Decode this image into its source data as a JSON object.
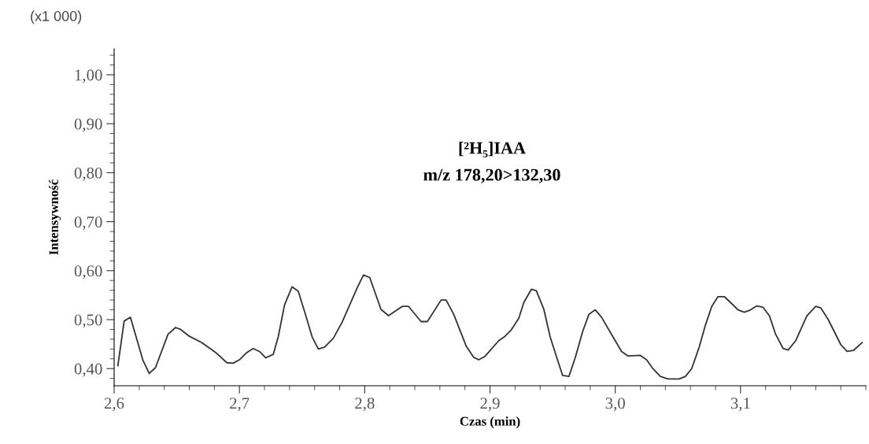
{
  "chart_data": {
    "type": "line",
    "xlabel": "Czas (min)",
    "ylabel": "Intensywność",
    "annotations": [
      "(x1 000)",
      "[²H₅]IAA",
      "m/z 178,20>132,30"
    ],
    "x": [
      2.603,
      2.608,
      2.613,
      2.623,
      2.628,
      2.633,
      2.643,
      2.649,
      2.653,
      2.66,
      2.67,
      2.681,
      2.69,
      2.695,
      2.7,
      2.706,
      2.711,
      2.716,
      2.721,
      2.727,
      2.731,
      2.736,
      2.742,
      2.747,
      2.753,
      2.758,
      2.763,
      2.768,
      2.775,
      2.782,
      2.787,
      2.794,
      2.799,
      2.804,
      2.813,
      2.819,
      2.83,
      2.835,
      2.845,
      2.85,
      2.861,
      2.865,
      2.871,
      2.881,
      2.887,
      2.891,
      2.896,
      2.907,
      2.912,
      2.917,
      2.923,
      2.927,
      2.933,
      2.937,
      2.943,
      2.948,
      2.954,
      2.958,
      2.963,
      2.968,
      2.974,
      2.979,
      2.984,
      2.989,
      2.997,
      3.005,
      3.01,
      3.02,
      3.025,
      3.03,
      3.036,
      3.042,
      3.051,
      3.056,
      3.061,
      3.067,
      3.072,
      3.077,
      3.082,
      3.087,
      3.092,
      3.098,
      3.103,
      3.108,
      3.113,
      3.118,
      3.123,
      3.128,
      3.134,
      3.138,
      3.144,
      3.153,
      3.16,
      3.164,
      3.17,
      3.18,
      3.185,
      3.19,
      3.197
    ],
    "series": [
      {
        "color": "#333333",
        "values": [
          0.406,
          0.497,
          0.505,
          0.417,
          0.39,
          0.402,
          0.47,
          0.484,
          0.48,
          0.466,
          0.453,
          0.433,
          0.412,
          0.411,
          0.418,
          0.433,
          0.441,
          0.435,
          0.422,
          0.429,
          0.465,
          0.53,
          0.567,
          0.558,
          0.508,
          0.465,
          0.44,
          0.444,
          0.462,
          0.495,
          0.524,
          0.565,
          0.591,
          0.586,
          0.521,
          0.508,
          0.527,
          0.527,
          0.496,
          0.496,
          0.54,
          0.54,
          0.511,
          0.446,
          0.423,
          0.418,
          0.425,
          0.457,
          0.466,
          0.479,
          0.503,
          0.535,
          0.562,
          0.559,
          0.521,
          0.465,
          0.417,
          0.386,
          0.384,
          0.422,
          0.476,
          0.511,
          0.52,
          0.505,
          0.47,
          0.435,
          0.426,
          0.427,
          0.418,
          0.4,
          0.384,
          0.379,
          0.379,
          0.384,
          0.4,
          0.444,
          0.489,
          0.527,
          0.547,
          0.547,
          0.535,
          0.52,
          0.515,
          0.52,
          0.528,
          0.525,
          0.508,
          0.47,
          0.441,
          0.438,
          0.457,
          0.508,
          0.527,
          0.524,
          0.5,
          0.449,
          0.435,
          0.437,
          0.453
        ]
      }
    ],
    "xlim": [
      2.6,
      3.2
    ],
    "ylim": [
      0.365,
      1.053
    ],
    "xticks": [
      {
        "value": 2.6,
        "label": "2,6"
      },
      {
        "value": 2.7,
        "label": "2,7"
      },
      {
        "value": 2.8,
        "label": "2,8"
      },
      {
        "value": 2.9,
        "label": "2,9"
      },
      {
        "value": 3.0,
        "label": "3,0"
      },
      {
        "value": 3.1,
        "label": "3,1"
      }
    ],
    "yticks": [
      {
        "value": 0.4,
        "label": "0,40"
      },
      {
        "value": 0.5,
        "label": "0,50"
      },
      {
        "value": 0.6,
        "label": "0,60"
      },
      {
        "value": 0.7,
        "label": "0,70"
      },
      {
        "value": 0.8,
        "label": "0,80"
      },
      {
        "value": 0.9,
        "label": "0,90"
      },
      {
        "value": 1.0,
        "label": "1,00"
      }
    ],
    "grid": false,
    "legend": false,
    "marker": "none",
    "line_style": "solid"
  }
}
